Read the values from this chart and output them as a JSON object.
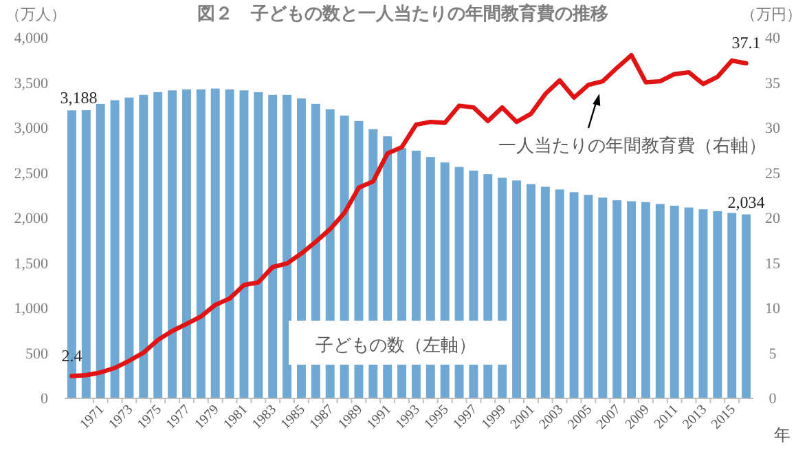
{
  "chart_data": {
    "type": "bar",
    "title": "図２　子どもの数と一人当たりの年間教育費の推移",
    "xlabel": "年",
    "ylabel": "（万人）",
    "y2label": "（万円）",
    "categories": [
      null,
      null,
      "1971",
      null,
      "1973",
      null,
      "1975",
      null,
      "1977",
      null,
      "1979",
      null,
      "1981",
      null,
      "1983",
      null,
      "1985",
      null,
      "1987",
      null,
      "1989",
      null,
      "1991",
      null,
      "1993",
      null,
      "1995",
      null,
      "1997",
      null,
      "1999",
      null,
      "2001",
      null,
      "2003",
      null,
      "2005",
      null,
      "2007",
      null,
      "2009",
      null,
      "2011",
      null,
      "2013",
      null,
      "2015",
      null
    ],
    "ylim": [
      0,
      4000
    ],
    "yticks": [
      {
        "value": 0,
        "label": "0"
      },
      {
        "value": 500,
        "label": "500"
      },
      {
        "value": 1000,
        "label": "1,000"
      },
      {
        "value": 1500,
        "label": "1,500"
      },
      {
        "value": 2000,
        "label": "2,000"
      },
      {
        "value": 2500,
        "label": "2,500"
      },
      {
        "value": 3000,
        "label": "3,000"
      },
      {
        "value": 3500,
        "label": "3,500"
      },
      {
        "value": 4000,
        "label": "4,000"
      }
    ],
    "y2lim": [
      0,
      40
    ],
    "y2ticks": [
      0,
      5,
      10,
      15,
      20,
      25,
      30,
      35,
      40
    ],
    "grid": false,
    "legend": false,
    "series": [
      {
        "name": "子どもの数（左軸）",
        "color": "#70a8d4",
        "values": [
          3188,
          3190,
          3260,
          3300,
          3330,
          3360,
          3390,
          3410,
          3420,
          3420,
          3430,
          3420,
          3410,
          3390,
          3360,
          3360,
          3320,
          3260,
          3200,
          3130,
          3070,
          2980,
          2900,
          2770,
          2740,
          2670,
          2610,
          2560,
          2520,
          2480,
          2440,
          2410,
          2370,
          2340,
          2310,
          2280,
          2250,
          2220,
          2190,
          2180,
          2170,
          2150,
          2130,
          2110,
          2090,
          2070,
          2050,
          2034
        ],
        "value_labels": [
          "3,188",
          null,
          null,
          null,
          null,
          null,
          null,
          null,
          null,
          null,
          null,
          null,
          null,
          null,
          null,
          null,
          null,
          null,
          null,
          null,
          null,
          null,
          null,
          null,
          null,
          null,
          null,
          null,
          null,
          null,
          null,
          null,
          null,
          null,
          null,
          null,
          null,
          null,
          null,
          null,
          null,
          null,
          null,
          null,
          null,
          null,
          null,
          "2,034"
        ]
      },
      {
        "name": "一人当たりの年間教育費（右軸）",
        "type": "line",
        "axis": "y2",
        "color": "#e01414",
        "marker": "none",
        "line_style": "solid",
        "values": [
          2.4,
          2.5,
          2.8,
          3.3,
          4.1,
          5.0,
          6.4,
          7.4,
          8.2,
          9.0,
          10.3,
          11.0,
          12.5,
          12.8,
          14.5,
          14.9,
          16.0,
          17.3,
          18.7,
          20.5,
          23.3,
          24.0,
          27.1,
          27.8,
          30.3,
          30.6,
          30.5,
          32.4,
          32.2,
          30.7,
          32.2,
          30.6,
          31.5,
          33.7,
          35.2,
          33.3,
          34.7,
          35.1,
          36.6,
          38.0,
          35.0,
          35.1,
          35.9,
          36.1,
          34.8,
          35.6,
          37.4,
          37.1
        ],
        "value_labels": [
          "2.4",
          null,
          null,
          null,
          null,
          null,
          null,
          null,
          null,
          null,
          null,
          null,
          null,
          null,
          null,
          null,
          null,
          null,
          null,
          null,
          null,
          null,
          null,
          null,
          null,
          null,
          null,
          null,
          null,
          null,
          null,
          null,
          null,
          null,
          null,
          null,
          null,
          null,
          null,
          null,
          null,
          null,
          null,
          null,
          null,
          null,
          null,
          "37.1"
        ]
      }
    ]
  }
}
